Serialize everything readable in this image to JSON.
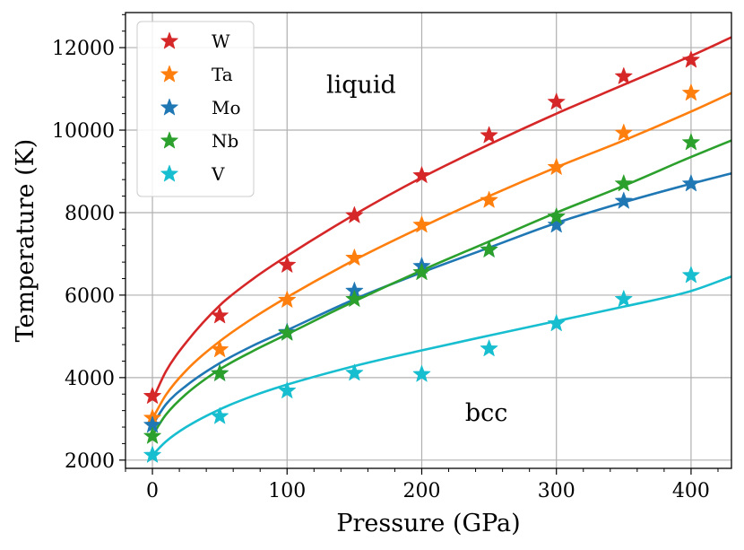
{
  "chart_data": {
    "type": "scatter",
    "xlabel": "Pressure (GPa)",
    "ylabel": "Temperature (K)",
    "xlim": [
      -20,
      430
    ],
    "ylim": [
      1800,
      12850
    ],
    "x_ticks": [
      0,
      100,
      200,
      300,
      400
    ],
    "x_tick_labels": [
      "0",
      "100",
      "200",
      "300",
      "400"
    ],
    "y_ticks": [
      2000,
      4000,
      6000,
      8000,
      10000,
      12000
    ],
    "y_tick_labels": [
      "2000",
      "4000",
      "6000",
      "8000",
      "10000",
      "12000"
    ],
    "grid": true,
    "legend_position": "top-left",
    "annotations": [
      {
        "text": "liquid",
        "x": 155,
        "y": 10900
      },
      {
        "text": "bcc",
        "x": 248,
        "y": 2950
      }
    ],
    "series": [
      {
        "name": "W",
        "color": "#d62728",
        "x": [
          0,
          50,
          100,
          150,
          200,
          250,
          300,
          350,
          400
        ],
        "values": [
          3550,
          5500,
          6730,
          7930,
          8900,
          9870,
          10680,
          11300,
          11700
        ],
        "fit_x": [
          0,
          10,
          25,
          50,
          75,
          100,
          150,
          200,
          250,
          300,
          350,
          400,
          430
        ],
        "fit_values": [
          3450,
          4150,
          4850,
          5750,
          6400,
          6950,
          7950,
          8850,
          9650,
          10400,
          11100,
          11800,
          12250
        ]
      },
      {
        "name": "Ta",
        "color": "#ff7f0e",
        "x": [
          0,
          50,
          100,
          150,
          200,
          250,
          300,
          350,
          400
        ],
        "values": [
          3020,
          4680,
          5880,
          6900,
          7700,
          8300,
          9100,
          9930,
          10900
        ],
        "fit_x": [
          0,
          10,
          25,
          50,
          75,
          100,
          150,
          200,
          250,
          300,
          350,
          400,
          430
        ],
        "fit_values": [
          3000,
          3580,
          4170,
          4880,
          5450,
          5950,
          6850,
          7650,
          8400,
          9100,
          9750,
          10450,
          10900
        ]
      },
      {
        "name": "Mo",
        "color": "#1f77b4",
        "x": [
          0,
          50,
          100,
          150,
          200,
          250,
          300,
          350,
          400
        ],
        "values": [
          2850,
          4100,
          5100,
          6100,
          6700,
          7100,
          7700,
          8280,
          8700
        ],
        "fit_x": [
          0,
          10,
          25,
          50,
          75,
          100,
          150,
          200,
          250,
          300,
          350,
          400,
          430
        ],
        "fit_values": [
          2850,
          3350,
          3800,
          4350,
          4780,
          5150,
          5900,
          6550,
          7150,
          7750,
          8250,
          8700,
          8950
        ]
      },
      {
        "name": "Nb",
        "color": "#2ca02c",
        "x": [
          0,
          50,
          100,
          150,
          200,
          250,
          300,
          350,
          400
        ],
        "values": [
          2580,
          4100,
          5080,
          5900,
          6550,
          7100,
          7900,
          8700,
          9700
        ],
        "fit_x": [
          0,
          10,
          25,
          50,
          75,
          100,
          150,
          200,
          250,
          300,
          350,
          400,
          430
        ],
        "fit_values": [
          2600,
          3100,
          3600,
          4200,
          4650,
          5050,
          5850,
          6600,
          7300,
          8000,
          8650,
          9350,
          9750
        ]
      },
      {
        "name": "V",
        "color": "#17becf",
        "x": [
          0,
          50,
          100,
          150,
          200,
          250,
          300,
          350,
          400
        ],
        "values": [
          2120,
          3060,
          3680,
          4110,
          4080,
          4700,
          5310,
          5900,
          6480
        ],
        "fit_x": [
          0,
          10,
          25,
          50,
          75,
          100,
          150,
          200,
          250,
          300,
          350,
          400,
          430
        ],
        "fit_values": [
          2120,
          2450,
          2800,
          3230,
          3560,
          3830,
          4280,
          4660,
          5020,
          5370,
          5720,
          6100,
          6450
        ]
      }
    ]
  }
}
